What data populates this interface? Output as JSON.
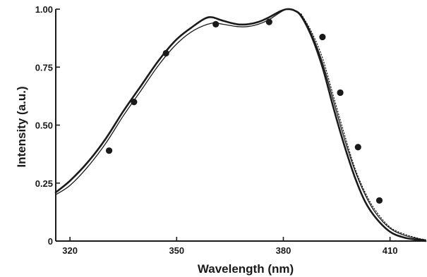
{
  "chart_data": {
    "type": "line",
    "title": "",
    "xlabel": "Wavelength (nm)",
    "ylabel": "Intensity (a.u.)",
    "xlim": [
      316,
      420
    ],
    "ylim": [
      0,
      1.0
    ],
    "x_ticks": [
      320,
      350,
      380,
      410
    ],
    "x_tick_labels": [
      "320",
      "350",
      "380",
      "410"
    ],
    "y_ticks": [
      0,
      0.25,
      0.5,
      0.75,
      1.0
    ],
    "y_tick_labels": [
      "0",
      "0.25",
      "0.50",
      "0.75",
      "1.00"
    ],
    "grid": false,
    "legend": "none",
    "colors": {
      "ink": "#1a1a1a",
      "background": "#ffffff"
    },
    "series": [
      {
        "style": "solid-thick",
        "x": [
          316,
          320,
          325,
          330,
          335,
          340,
          345,
          350,
          355,
          358,
          360,
          363,
          367,
          370,
          373,
          376,
          379,
          381,
          383,
          385,
          388,
          391,
          394,
          397,
          400,
          403,
          406,
          410,
          414,
          418,
          420
        ],
        "y": [
          0.21,
          0.26,
          0.34,
          0.44,
          0.56,
          0.67,
          0.78,
          0.87,
          0.93,
          0.96,
          0.965,
          0.95,
          0.935,
          0.935,
          0.945,
          0.965,
          0.99,
          1.0,
          0.995,
          0.97,
          0.88,
          0.75,
          0.58,
          0.42,
          0.28,
          0.17,
          0.1,
          0.04,
          0.015,
          0.005,
          0.0
        ]
      },
      {
        "style": "solid-thin",
        "x": [
          316,
          320,
          325,
          330,
          335,
          340,
          345,
          350,
          355,
          360,
          363,
          367,
          370,
          373,
          376,
          379,
          381,
          383,
          385,
          388,
          391,
          394,
          397,
          400,
          403,
          406,
          410,
          414,
          418,
          420
        ],
        "y": [
          0.2,
          0.24,
          0.32,
          0.42,
          0.54,
          0.65,
          0.76,
          0.85,
          0.91,
          0.94,
          0.935,
          0.925,
          0.925,
          0.935,
          0.955,
          0.985,
          1.0,
          0.995,
          0.975,
          0.89,
          0.77,
          0.61,
          0.45,
          0.31,
          0.2,
          0.12,
          0.055,
          0.025,
          0.01,
          0.005
        ]
      },
      {
        "style": "dotted",
        "x": [
          385,
          388,
          391,
          394,
          397,
          400,
          403,
          406,
          410,
          414,
          418,
          420
        ],
        "y": [
          0.98,
          0.9,
          0.79,
          0.63,
          0.47,
          0.32,
          0.21,
          0.13,
          0.06,
          0.03,
          0.012,
          0.006
        ]
      },
      {
        "style": "markers",
        "x": [
          331,
          338,
          347,
          361,
          376,
          391,
          396,
          401,
          407
        ],
        "y": [
          0.39,
          0.6,
          0.81,
          0.935,
          0.945,
          0.88,
          0.64,
          0.405,
          0.175
        ]
      }
    ]
  }
}
